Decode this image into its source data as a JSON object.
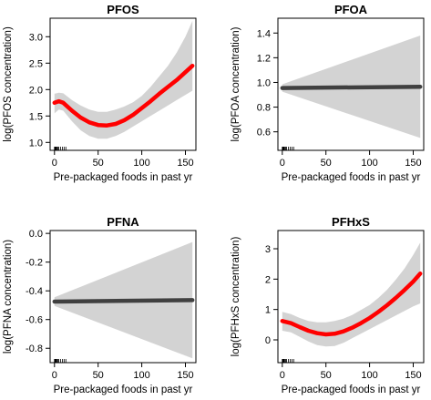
{
  "chart_data": [
    {
      "type": "line",
      "title": "PFOS",
      "xlabel": "Pre-packaged foods in past yr",
      "ylabel": "log(PFOS concentration)",
      "xlim": [
        -5,
        162
      ],
      "ylim": [
        0.85,
        3.35
      ],
      "xticks": [
        0,
        50,
        100,
        150
      ],
      "yticks": [
        1.0,
        1.5,
        2.0,
        2.5,
        3.0
      ],
      "ytick_labels": [
        "1.0",
        "1.5",
        "2.0",
        "2.5",
        "3.0"
      ],
      "series": [
        {
          "color": "#ff0000",
          "x": [
            0,
            5,
            10,
            20,
            30,
            40,
            50,
            60,
            70,
            80,
            90,
            100,
            110,
            120,
            130,
            140,
            150,
            158
          ],
          "y": [
            1.75,
            1.78,
            1.75,
            1.6,
            1.47,
            1.38,
            1.33,
            1.32,
            1.35,
            1.42,
            1.52,
            1.65,
            1.78,
            1.92,
            2.05,
            2.18,
            2.33,
            2.45
          ],
          "lower": [
            1.55,
            1.62,
            1.6,
            1.4,
            1.23,
            1.12,
            1.07,
            1.07,
            1.12,
            1.2,
            1.3,
            1.4,
            1.5,
            1.6,
            1.7,
            1.8,
            1.9,
            1.98
          ],
          "upper": [
            1.92,
            1.94,
            1.93,
            1.8,
            1.7,
            1.62,
            1.58,
            1.58,
            1.62,
            1.68,
            1.76,
            1.88,
            2.05,
            2.25,
            2.45,
            2.7,
            3.0,
            3.3
          ]
        }
      ]
    },
    {
      "type": "line",
      "title": "PFOA",
      "xlabel": "Pre-packaged foods in past yr",
      "ylabel": "log(PFOA concentration)",
      "xlim": [
        -5,
        162
      ],
      "ylim": [
        0.45,
        1.52
      ],
      "xticks": [
        0,
        50,
        100,
        150
      ],
      "yticks": [
        0.6,
        0.8,
        1.0,
        1.2,
        1.4
      ],
      "ytick_labels": [
        "0.6",
        "0.8",
        "1.0",
        "1.2",
        "1.4"
      ],
      "series": [
        {
          "color": "#404040",
          "x": [
            0,
            158
          ],
          "y": [
            0.955,
            0.965
          ],
          "lower": [
            0.925,
            0.55
          ],
          "upper": [
            0.985,
            1.38
          ]
        }
      ]
    },
    {
      "type": "line",
      "title": "PFNA",
      "xlabel": "Pre-packaged foods in past yr",
      "ylabel": "log(PFNA concentration)",
      "xlim": [
        -5,
        162
      ],
      "ylim": [
        -0.9,
        0.02
      ],
      "xticks": [
        0,
        50,
        100,
        150
      ],
      "yticks": [
        -0.8,
        -0.6,
        -0.4,
        -0.2,
        0.0
      ],
      "ytick_labels": [
        "-0.8",
        "-0.6",
        "-0.4",
        "-0.2",
        "0.0"
      ],
      "series": [
        {
          "color": "#404040",
          "x": [
            0,
            158
          ],
          "y": [
            -0.475,
            -0.465
          ],
          "lower": [
            -0.505,
            -0.87
          ],
          "upper": [
            -0.445,
            -0.06
          ]
        }
      ]
    },
    {
      "type": "line",
      "title": "PFHxS",
      "xlabel": "Pre-packaged foods in past yr",
      "ylabel": "log(PFHxS concentration)",
      "xlim": [
        -5,
        162
      ],
      "ylim": [
        -0.75,
        3.6
      ],
      "xticks": [
        0,
        50,
        100,
        150
      ],
      "yticks": [
        0,
        1,
        2,
        3
      ],
      "ytick_labels": [
        "0",
        "1",
        "2",
        "3"
      ],
      "series": [
        {
          "color": "#ff0000",
          "x": [
            0,
            10,
            20,
            30,
            40,
            50,
            60,
            70,
            80,
            90,
            100,
            110,
            120,
            130,
            140,
            150,
            158
          ],
          "y": [
            0.62,
            0.55,
            0.42,
            0.3,
            0.22,
            0.18,
            0.2,
            0.28,
            0.4,
            0.55,
            0.72,
            0.92,
            1.14,
            1.38,
            1.64,
            1.92,
            2.18
          ],
          "lower": [
            0.3,
            0.25,
            0.1,
            -0.05,
            -0.17,
            -0.22,
            -0.2,
            -0.1,
            0.05,
            0.2,
            0.35,
            0.5,
            0.65,
            0.8,
            0.95,
            1.1,
            1.2
          ],
          "upper": [
            0.92,
            0.85,
            0.72,
            0.62,
            0.58,
            0.58,
            0.62,
            0.7,
            0.82,
            0.98,
            1.15,
            1.38,
            1.65,
            1.98,
            2.35,
            2.8,
            3.2
          ]
        }
      ]
    }
  ]
}
